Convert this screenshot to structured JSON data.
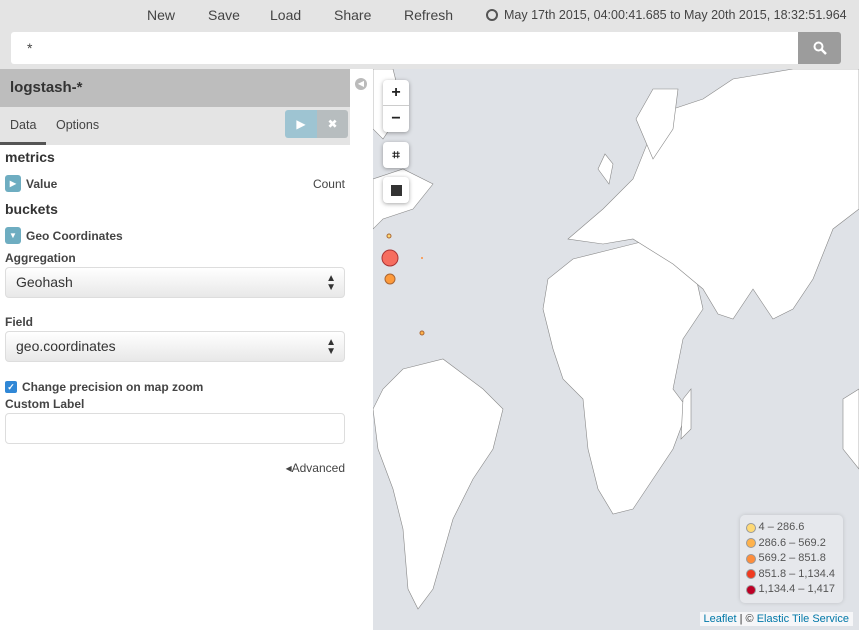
{
  "topnav": {
    "items": [
      "New",
      "Save",
      "Load",
      "Share",
      "Refresh"
    ],
    "time_range": "May 17th 2015, 04:00:41.685 to May 20th 2015, 18:32:51.964"
  },
  "search": {
    "query": "*"
  },
  "sidebar": {
    "index": "logstash-*",
    "tabs": [
      "Data",
      "Options"
    ],
    "metrics_title": "metrics",
    "metric": {
      "label": "Value",
      "agg": "Count"
    },
    "buckets_title": "buckets",
    "bucket": {
      "label": "Geo Coordinates"
    },
    "aggregation_label": "Aggregation",
    "aggregation_value": "Geohash",
    "field_label": "Field",
    "field_value": "geo.coordinates",
    "precision_label": "Change precision on map zoom",
    "precision_checked": true,
    "custom_label": "Custom Label",
    "custom_value": "",
    "advanced": "Advanced"
  },
  "map": {
    "controls": [
      "+",
      "−"
    ],
    "legend": [
      {
        "range": "4 – 286.6",
        "color": "#fed976"
      },
      {
        "range": "286.6 – 569.2",
        "color": "#feb24c"
      },
      {
        "range": "569.2 – 851.8",
        "color": "#fd8d3c"
      },
      {
        "range": "851.8 – 1,134.4",
        "color": "#f03b20"
      },
      {
        "range": "1,134.4 – 1,417",
        "color": "#bd0026"
      }
    ],
    "attribution": {
      "leaflet": "Leaflet",
      "sep": " | © ",
      "service": "Elastic Tile Service"
    }
  }
}
